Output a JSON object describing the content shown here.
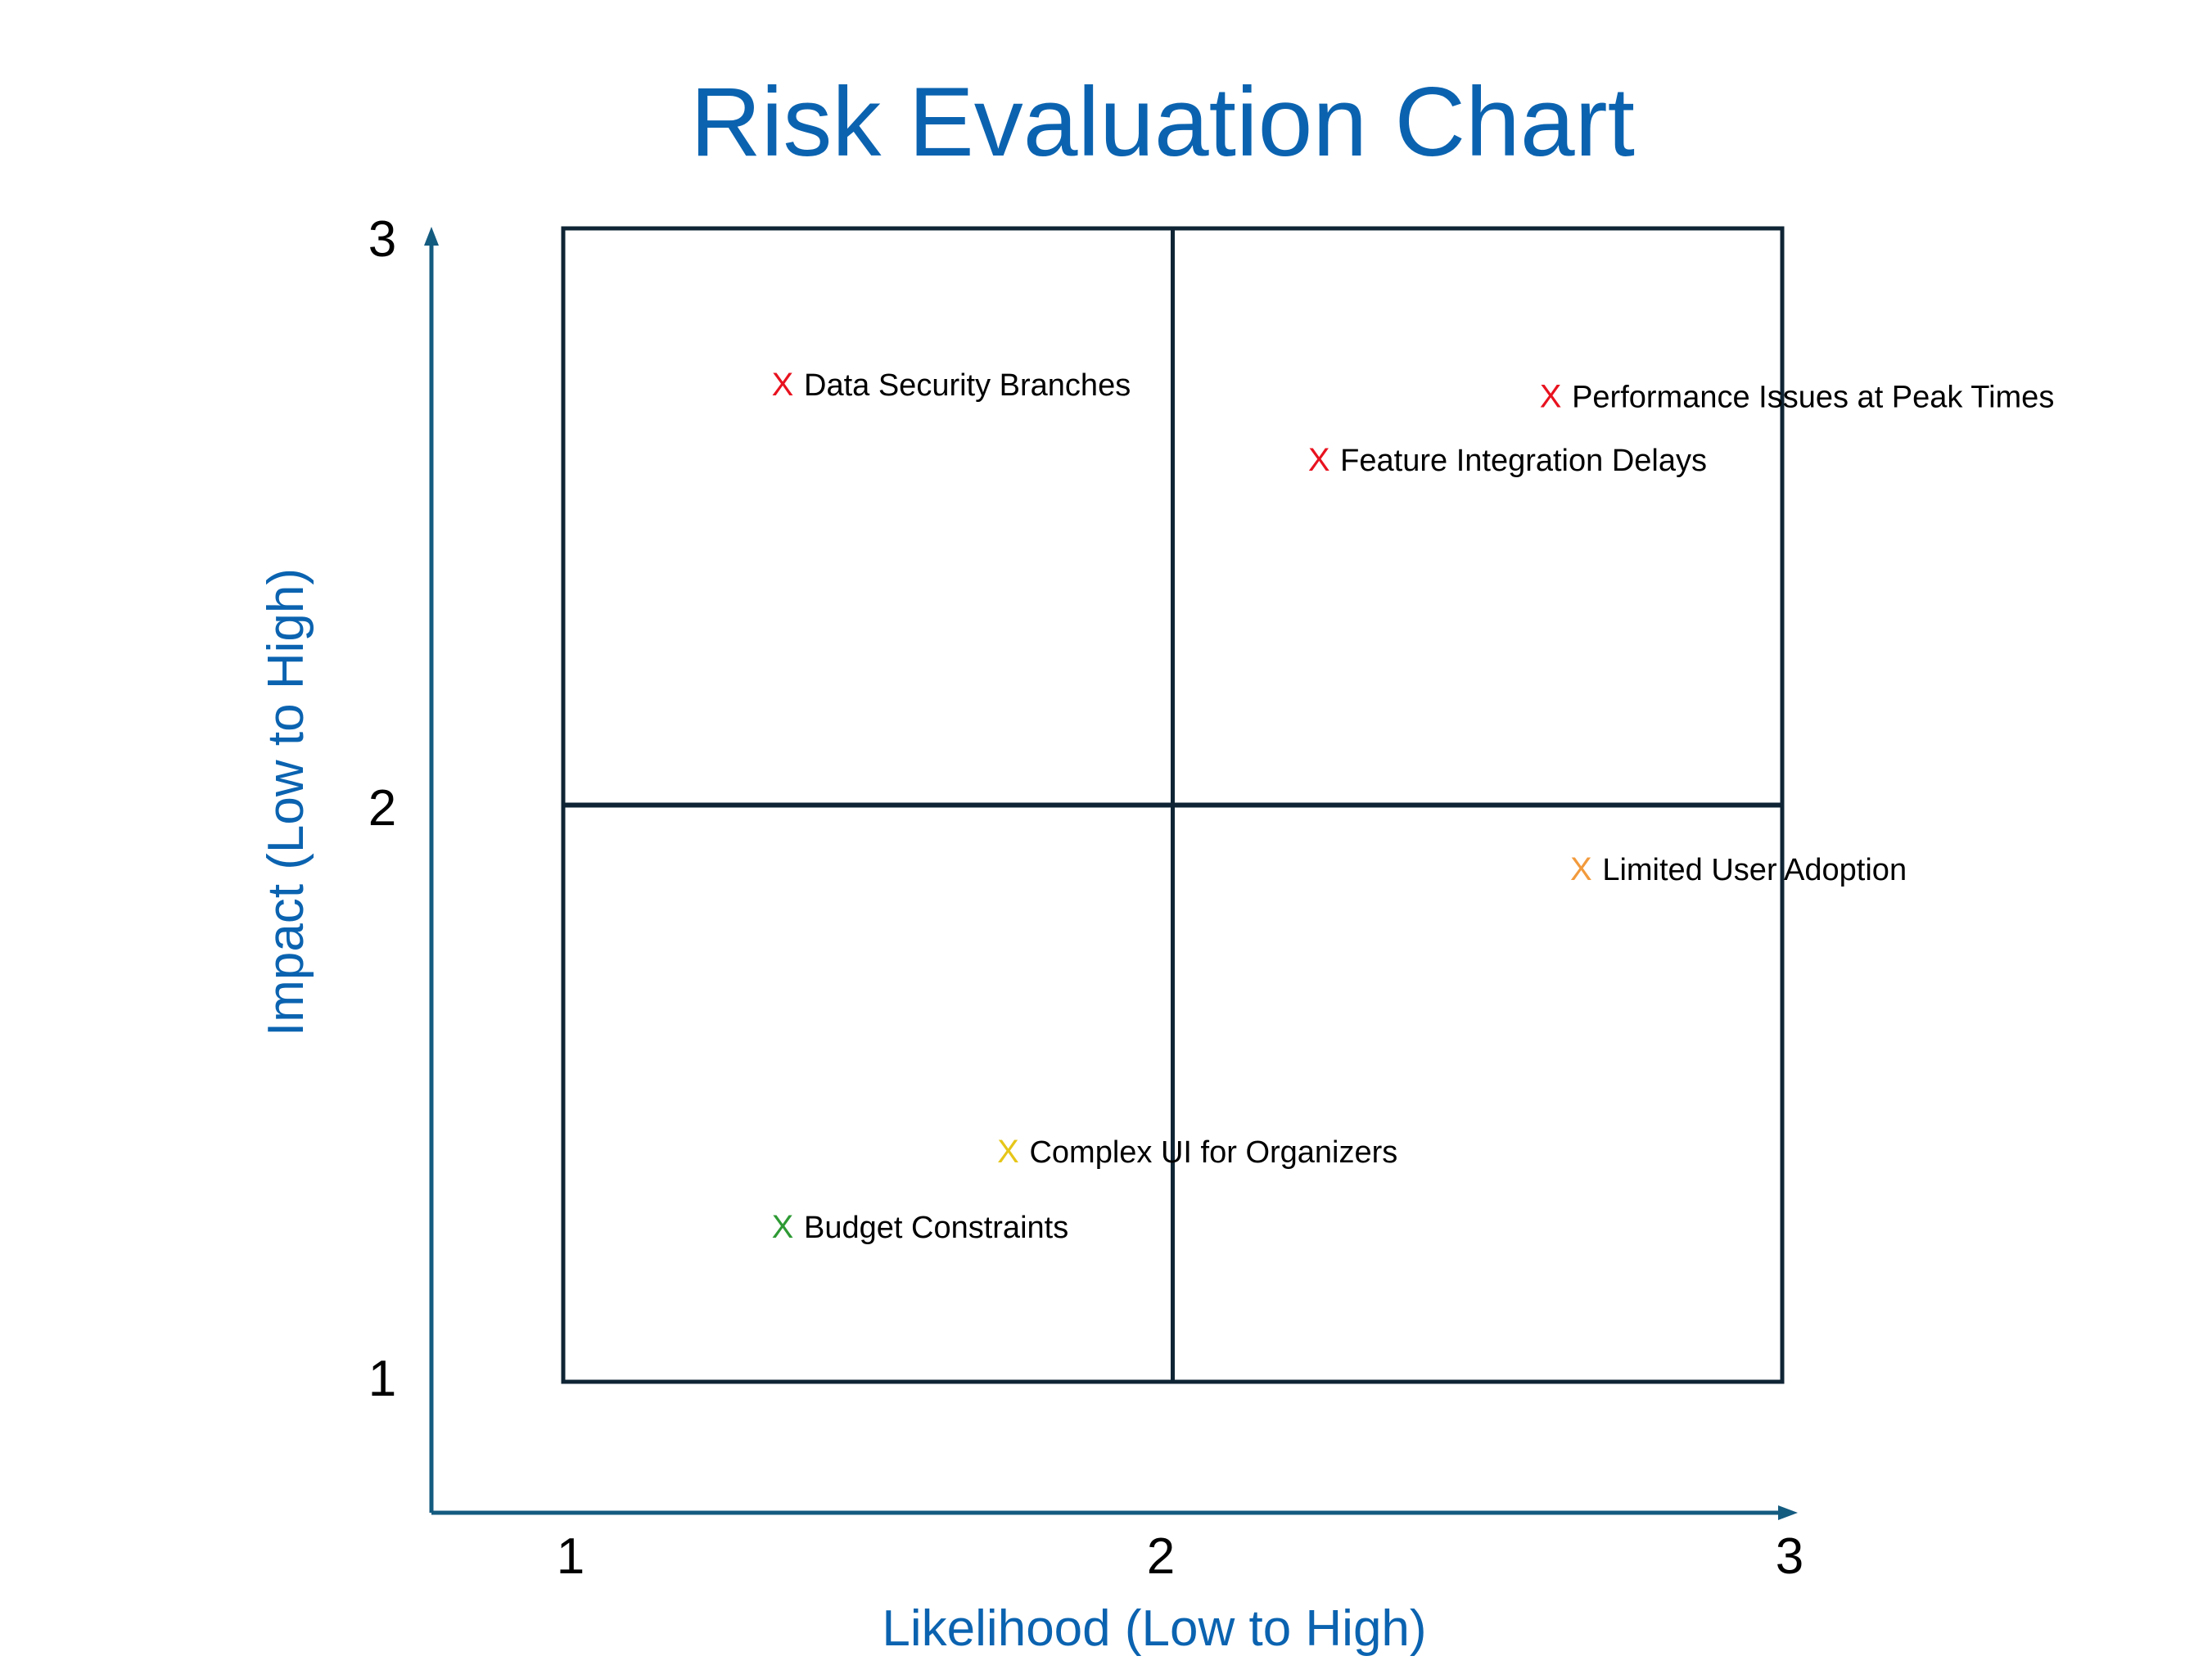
{
  "chart_data": {
    "type": "scatter",
    "title": "Risk Evaluation Chart",
    "xlabel": "Likelihood (Low to High)",
    "ylabel": "Impact (Low to High)",
    "xlim": [
      1,
      3
    ],
    "ylim": [
      1,
      3
    ],
    "x_ticks": [
      "1",
      "2",
      "3"
    ],
    "y_ticks": [
      "1",
      "2",
      "3"
    ],
    "quadrant_dividers": {
      "x": 2,
      "y": 2
    },
    "grid": false,
    "marker": "X",
    "colors": {
      "title": "#0b63b0",
      "axis_label": "#0b63b0",
      "axis_line": "#145b80",
      "quadrant_line": "#0f2535"
    },
    "points": [
      {
        "label": "Data Security Branches",
        "x": 1.36,
        "y": 2.73,
        "color": "#e8121f"
      },
      {
        "label": "Performance Issues at Peak Times",
        "x": 2.62,
        "y": 2.71,
        "color": "#e8121f"
      },
      {
        "label": "Feature Integration Delays",
        "x": 2.24,
        "y": 2.6,
        "color": "#e8121f"
      },
      {
        "label": "Limited User Adoption",
        "x": 2.67,
        "y": 1.89,
        "color": "#f29a3c"
      },
      {
        "label": "Complex UI for Organizers",
        "x": 1.73,
        "y": 1.4,
        "color": "#e6c619"
      },
      {
        "label": "Budget Constraints",
        "x": 1.36,
        "y": 1.27,
        "color": "#2e9a34"
      }
    ]
  }
}
